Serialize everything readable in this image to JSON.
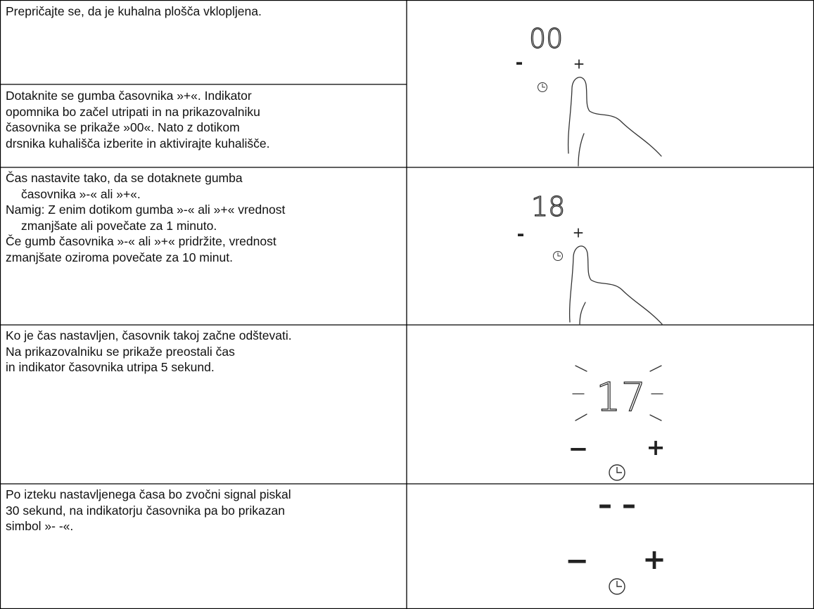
{
  "steps": [
    {
      "lines": [
        "Prepričajte se, da je kuhalna plošča vklopljena."
      ]
    },
    {
      "lines": [
        "Dotaknite se gumba časovnika »+«. Indikator",
        "opomnika bo začel utripati in na prikazovalniku",
        "časovnika se prikaže »00«. Nato z dotikom",
        "drsnika kuhališča izberite in aktivirajte kuhališče."
      ]
    },
    {
      "lines": [
        "Čas nastavite tako, da se dotaknete gumba",
        "časovnika »-« ali »+«.",
        "Namig: Z enim dotikom gumba »-« ali »+« vrednost",
        "zmanjšate ali povečate za 1 minuto.",
        "Če gumb časovnika »-« ali »+« pridržite, vrednost",
        "zmanjšate oziroma povečate za 10 minut."
      ]
    },
    {
      "lines": [
        "Ko je čas nastavljen, časovnik takoj začne odštevati.",
        "Na prikazovalniku se prikaže preostali čas",
        "in indikator časovnika utripa 5 sekund."
      ]
    },
    {
      "lines": [
        "Po izteku nastavljenega časa bo zvočni signal piskal",
        "30 sekund, na indikatorju časovnika pa bo prikazan",
        "simbol »- -«."
      ]
    }
  ],
  "illustrations": [
    {
      "display": "00",
      "minus": "-",
      "plus": "+"
    },
    {
      "display": "18",
      "minus": "-",
      "plus": "+"
    },
    {
      "display": "17",
      "minus": "−",
      "plus": "+"
    },
    {
      "display": "– –",
      "minus": "−",
      "plus": "+"
    }
  ]
}
